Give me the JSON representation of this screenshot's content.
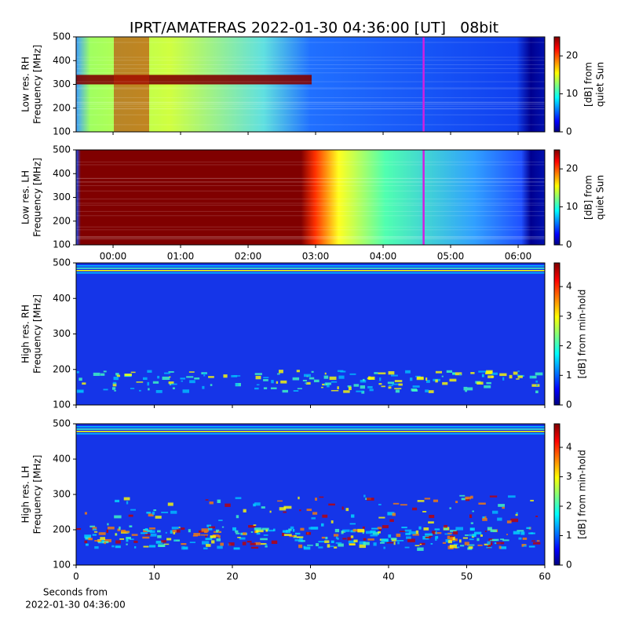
{
  "chart_data": [
    {
      "type": "spectrogram",
      "title": "IPRT/AMATERAS 2022-01-30 04:36:00 [UT]   08bit",
      "ylabel": [
        "Low res. RH",
        "Frequency [MHz]"
      ],
      "ylim": [
        100,
        500
      ],
      "yticks": [
        100,
        200,
        300,
        400,
        500
      ],
      "marker_x": 4.6,
      "marker_color": "#d020e0",
      "colorbar": {
        "label": [
          "[dB] from",
          "quiet Sun"
        ],
        "lim": [
          0,
          25
        ],
        "ticks": [
          0,
          10,
          20
        ]
      }
    },
    {
      "type": "spectrogram",
      "ylabel": [
        "Low res. LH",
        "Frequency [MHz]"
      ],
      "ylim": [
        100,
        500
      ],
      "yticks": [
        100,
        200,
        300,
        400,
        500
      ],
      "xlim": [
        -0.547,
        6.395
      ],
      "xticks": [
        {
          "value": 0,
          "label": "00:00"
        },
        {
          "value": 1,
          "label": "01:00"
        },
        {
          "value": 2,
          "label": "02:00"
        },
        {
          "value": 3,
          "label": "03:00"
        },
        {
          "value": 4,
          "label": "04:00"
        },
        {
          "value": 5,
          "label": "05:00"
        },
        {
          "value": 6,
          "label": "06:00"
        }
      ],
      "marker_x": 4.6,
      "marker_color": "#d020e0",
      "colorbar": {
        "label": [
          "[dB] from",
          "quiet Sun"
        ],
        "lim": [
          0,
          25
        ],
        "ticks": [
          0,
          10,
          20
        ]
      }
    },
    {
      "type": "spectrogram",
      "ylabel": [
        "High res. RH",
        "Frequency [MHz]"
      ],
      "ylim": [
        100,
        500
      ],
      "yticks": [
        100,
        200,
        300,
        400,
        500
      ],
      "colorbar": {
        "label": [
          "[dB] from min-hold"
        ],
        "lim": [
          0,
          4.8
        ],
        "ticks": [
          0,
          1,
          2,
          3,
          4
        ]
      }
    },
    {
      "type": "spectrogram",
      "ylabel": [
        "High res. LH",
        "Frequency [MHz]"
      ],
      "ylim": [
        100,
        500
      ],
      "yticks": [
        100,
        200,
        300,
        400,
        500
      ],
      "xlim": [
        0,
        60
      ],
      "xticks": [
        0,
        10,
        20,
        30,
        40,
        50,
        60
      ],
      "xlabel": [
        "Seconds from",
        "2022-01-30 04:36:00"
      ],
      "colorbar": {
        "label": [
          "[dB] from min-hold"
        ],
        "lim": [
          0,
          4.8
        ],
        "ticks": [
          0,
          1,
          2,
          3,
          4
        ]
      }
    }
  ]
}
